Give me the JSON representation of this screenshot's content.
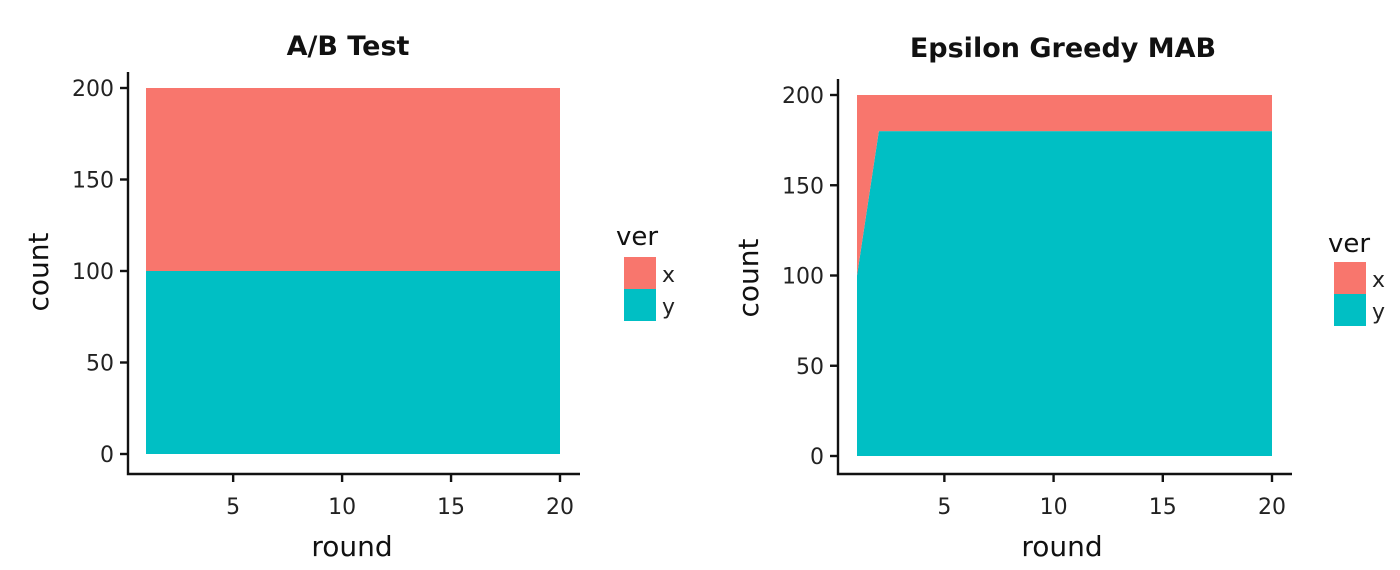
{
  "chart_data": [
    {
      "type": "area",
      "stacked": true,
      "title": "A/B Test",
      "xlabel": "round",
      "ylabel": "count",
      "xlim": [
        1,
        20
      ],
      "ylim": [
        0,
        200
      ],
      "x_ticks": [
        5,
        10,
        15,
        20
      ],
      "y_ticks": [
        0,
        50,
        100,
        150,
        200
      ],
      "grid": false,
      "legend": {
        "title": "ver",
        "placement": "right"
      },
      "x": [
        1,
        2,
        3,
        4,
        5,
        6,
        7,
        8,
        9,
        10,
        11,
        12,
        13,
        14,
        15,
        16,
        17,
        18,
        19,
        20
      ],
      "series": [
        {
          "name": "x",
          "color": "#F8766D",
          "values": [
            100,
            100,
            100,
            100,
            100,
            100,
            100,
            100,
            100,
            100,
            100,
            100,
            100,
            100,
            100,
            100,
            100,
            100,
            100,
            100
          ]
        },
        {
          "name": "y",
          "color": "#00BFC4",
          "values": [
            100,
            100,
            100,
            100,
            100,
            100,
            100,
            100,
            100,
            100,
            100,
            100,
            100,
            100,
            100,
            100,
            100,
            100,
            100,
            100
          ]
        }
      ]
    },
    {
      "type": "area",
      "stacked": true,
      "title": "Epsilon Greedy MAB",
      "xlabel": "round",
      "ylabel": "count",
      "xlim": [
        1,
        20
      ],
      "ylim": [
        0,
        200
      ],
      "x_ticks": [
        5,
        10,
        15,
        20
      ],
      "y_ticks": [
        0,
        50,
        100,
        150,
        200
      ],
      "grid": false,
      "legend": {
        "title": "ver",
        "placement": "right"
      },
      "x": [
        1,
        2,
        3,
        4,
        5,
        6,
        7,
        8,
        9,
        10,
        11,
        12,
        13,
        14,
        15,
        16,
        17,
        18,
        19,
        20
      ],
      "series": [
        {
          "name": "x",
          "color": "#F8766D",
          "values": [
            100,
            20,
            20,
            20,
            20,
            20,
            20,
            20,
            20,
            20,
            20,
            20,
            20,
            20,
            20,
            20,
            20,
            20,
            20,
            20
          ]
        },
        {
          "name": "y",
          "color": "#00BFC4",
          "values": [
            100,
            180,
            180,
            180,
            180,
            180,
            180,
            180,
            180,
            180,
            180,
            180,
            180,
            180,
            180,
            180,
            180,
            180,
            180,
            180
          ]
        }
      ]
    }
  ]
}
